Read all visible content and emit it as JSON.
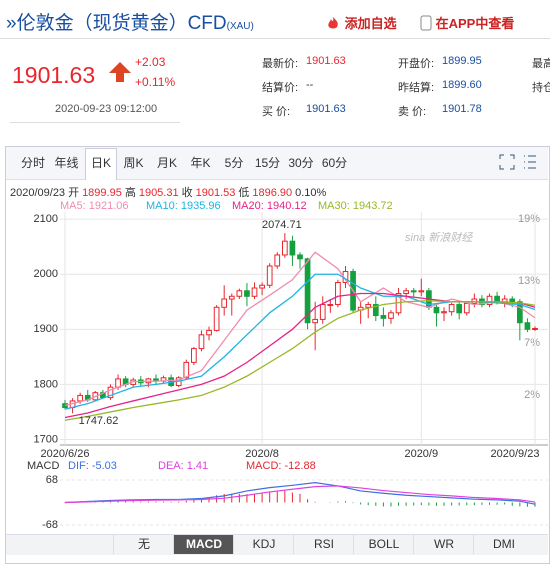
{
  "header": {
    "title": "»伦敦金（现货黄金）CFD",
    "code": "(XAU)",
    "add_watchlist": "添加自选",
    "open_app": "在APP中查看"
  },
  "quote": {
    "price": "1901.63",
    "change": "+2.03",
    "change_pct": "+0.11%",
    "time": "2020-09-23 09:12:00"
  },
  "fields": [
    [
      {
        "label": "最新价:",
        "value": "1901.63"
      },
      {
        "label": "开盘价:",
        "value": "1899.95"
      },
      {
        "label": "最高"
      }
    ],
    [
      {
        "label": "结算价:",
        "value": "--"
      },
      {
        "label": "昨结算:",
        "value": "1899.60"
      },
      {
        "label": "持仓"
      }
    ],
    [
      {
        "label": "买 价:",
        "value": "1901.63"
      },
      {
        "label": "卖 价:",
        "value": "1901.78"
      }
    ]
  ],
  "tabs": [
    "分时",
    "年线",
    "日K",
    "周K",
    "月K",
    "年K",
    "5分",
    "15分",
    "30分",
    "60分"
  ],
  "active_tab": "日K",
  "indicator_tabs": [
    "无",
    "MACD",
    "KDJ",
    "RSI",
    "BOLL",
    "WR",
    "DMI"
  ],
  "active_indicator": "MACD",
  "watermark": "sina 新浪财经",
  "chart_data": [
    {
      "type": "candlestick",
      "ohlc_line": [
        "2020/09/23",
        "开",
        "1899.95",
        "高",
        "1905.31",
        "收",
        "1901.53",
        "低",
        "1896.90",
        "0.10%"
      ],
      "up_color": "#e8262d",
      "down_color": "#14a03e",
      "categories": [
        "2020/6/26",
        null,
        null,
        null,
        null,
        null,
        null,
        null,
        null,
        null,
        null,
        null,
        null,
        null,
        null,
        null,
        null,
        null,
        null,
        null,
        null,
        null,
        null,
        null,
        null,
        null,
        "2020/8",
        null,
        null,
        null,
        null,
        null,
        null,
        null,
        null,
        null,
        null,
        null,
        null,
        null,
        null,
        null,
        null,
        null,
        null,
        null,
        null,
        "2020/9",
        null,
        null,
        null,
        null,
        null,
        null,
        null,
        null,
        null,
        null,
        null,
        null,
        null,
        null,
        "2020/9/23"
      ],
      "candles": [
        [
          1765,
          1772,
          1755,
          1758
        ],
        [
          1758,
          1775,
          1747.62,
          1770
        ],
        [
          1770,
          1785,
          1765,
          1780
        ],
        [
          1780,
          1790,
          1768,
          1772
        ],
        [
          1772,
          1788,
          1770,
          1785
        ],
        [
          1785,
          1790,
          1774,
          1776
        ],
        [
          1776,
          1800,
          1772,
          1795
        ],
        [
          1795,
          1818,
          1790,
          1810
        ],
        [
          1810,
          1815,
          1795,
          1800
        ],
        [
          1800,
          1812,
          1796,
          1808
        ],
        [
          1808,
          1815,
          1798,
          1803
        ],
        [
          1803,
          1812,
          1795,
          1810
        ],
        [
          1810,
          1818,
          1800,
          1806
        ],
        [
          1806,
          1816,
          1802,
          1812
        ],
        [
          1812,
          1818,
          1795,
          1798
        ],
        [
          1798,
          1815,
          1795,
          1812
        ],
        [
          1812,
          1845,
          1810,
          1840
        ],
        [
          1840,
          1868,
          1835,
          1865
        ],
        [
          1865,
          1898,
          1860,
          1890
        ],
        [
          1890,
          1905,
          1880,
          1898
        ],
        [
          1898,
          1944,
          1896,
          1940
        ],
        [
          1940,
          1980,
          1925,
          1955
        ],
        [
          1955,
          1965,
          1925,
          1960
        ],
        [
          1960,
          1974,
          1955,
          1970
        ],
        [
          1970,
          1984,
          1942,
          1960
        ],
        [
          1960,
          1985,
          1955,
          1975
        ],
        [
          1975,
          1985,
          1962,
          1980
        ],
        [
          1980,
          2020,
          1975,
          2015
        ],
        [
          2015,
          2040,
          2010,
          2035
        ],
        [
          2035,
          2074.71,
          2030,
          2060
        ],
        [
          2060,
          2070,
          2015,
          2035
        ],
        [
          2035,
          2040,
          2010,
          2028
        ],
        [
          2028,
          2030,
          1900,
          1912
        ],
        [
          1912,
          1950,
          1862,
          1918
        ],
        [
          1918,
          1960,
          1910,
          1945
        ],
        [
          1945,
          1955,
          1930,
          1945
        ],
        [
          1945,
          1990,
          1940,
          1985
        ],
        [
          1985,
          2015,
          1975,
          2005
        ],
        [
          2005,
          2010,
          1930,
          1935
        ],
        [
          1935,
          1950,
          1910,
          1940
        ],
        [
          1940,
          1950,
          1920,
          1945
        ],
        [
          1945,
          1960,
          1915,
          1925
        ],
        [
          1925,
          1940,
          1905,
          1920
        ],
        [
          1920,
          1935,
          1910,
          1930
        ],
        [
          1930,
          1975,
          1925,
          1965
        ],
        [
          1965,
          1975,
          1955,
          1970
        ],
        [
          1970,
          1975,
          1958,
          1968
        ],
        [
          1968,
          1992,
          1960,
          1970
        ],
        [
          1970,
          1975,
          1935,
          1940
        ],
        [
          1940,
          1948,
          1905,
          1930
        ],
        [
          1930,
          1940,
          1915,
          1932
        ],
        [
          1932,
          1948,
          1925,
          1945
        ],
        [
          1945,
          1950,
          1918,
          1930
        ],
        [
          1930,
          1950,
          1925,
          1947
        ],
        [
          1947,
          1965,
          1940,
          1955
        ],
        [
          1955,
          1962,
          1940,
          1945
        ],
        [
          1945,
          1965,
          1940,
          1960
        ],
        [
          1960,
          1968,
          1945,
          1950
        ],
        [
          1950,
          1962,
          1940,
          1955
        ],
        [
          1955,
          1960,
          1940,
          1950
        ],
        [
          1950,
          1955,
          1880,
          1912
        ],
        [
          1912,
          1920,
          1895,
          1900
        ],
        [
          1899.95,
          1905.31,
          1896.9,
          1901.53
        ]
      ],
      "max_label_index": 29,
      "min_label_index": 1,
      "ylim": [
        1690,
        2113
      ],
      "yticks": [
        1700,
        1800,
        1900,
        2000,
        2100
      ],
      "y2lim": [
        -2.83,
        19.68
      ],
      "y2ticks": [
        {
          "value": 2,
          "label": "2%"
        },
        {
          "value": 7,
          "label": "7%"
        },
        {
          "value": 13,
          "label": "13%"
        },
        {
          "value": 19,
          "label": "19%"
        }
      ],
      "grid": true,
      "series": [
        {
          "name": "MA5: 1921.06",
          "color": "#f08cb0",
          "x": [
            0,
            3,
            6,
            9,
            12,
            15,
            18,
            21,
            24,
            27,
            30,
            33,
            36,
            39,
            42,
            45,
            48,
            51,
            54,
            57,
            60,
            62
          ],
          "values": [
            1762,
            1772,
            1790,
            1805,
            1806,
            1808,
            1825,
            1880,
            1935,
            1962,
            1990,
            2040,
            2010,
            1950,
            1975,
            1950,
            1940,
            1955,
            1945,
            1950,
            1940,
            1921.06
          ]
        },
        {
          "name": "MA10: 1935.96",
          "color": "#1fb3e6",
          "x": [
            0,
            3,
            6,
            9,
            12,
            15,
            18,
            21,
            24,
            27,
            30,
            33,
            36,
            39,
            42,
            45,
            48,
            51,
            54,
            57,
            60,
            62
          ],
          "values": [
            1755,
            1765,
            1780,
            1795,
            1800,
            1806,
            1815,
            1850,
            1890,
            1930,
            1960,
            2000,
            2000,
            1975,
            1960,
            1960,
            1945,
            1950,
            1950,
            1948,
            1945,
            1935.96
          ]
        },
        {
          "name": "MA20: 1940.12",
          "color": "#e6228a",
          "x": [
            0,
            3,
            6,
            9,
            12,
            15,
            18,
            21,
            24,
            27,
            30,
            33,
            36,
            39,
            42,
            45,
            48,
            51,
            54,
            57,
            60,
            62
          ],
          "values": [
            1740,
            1748,
            1760,
            1770,
            1780,
            1790,
            1800,
            1815,
            1840,
            1870,
            1900,
            1940,
            1960,
            1965,
            1965,
            1960,
            1955,
            1950,
            1950,
            1950,
            1948,
            1940.12
          ]
        },
        {
          "name": "MA30: 1943.72",
          "color": "#98b923",
          "x": [
            0,
            3,
            6,
            9,
            12,
            15,
            18,
            21,
            24,
            27,
            30,
            33,
            36,
            39,
            42,
            45,
            48,
            51,
            54,
            57,
            60,
            62
          ],
          "values": [
            1735,
            1742,
            1750,
            1758,
            1765,
            1772,
            1780,
            1795,
            1815,
            1840,
            1865,
            1895,
            1920,
            1935,
            1945,
            1950,
            1952,
            1950,
            1950,
            1950,
            1948,
            1943.72
          ]
        }
      ]
    },
    {
      "type": "macd",
      "title": "MACD",
      "ylim": [
        -68,
        68
      ],
      "yticks": [
        68,
        -68
      ],
      "up_color": "#e8262d",
      "down_color": "#14a03e",
      "histogram_name": "MACD: -12.88",
      "histogram_color": "#e8262d",
      "histogram": [
        2,
        3,
        4,
        5,
        4,
        5,
        6,
        5,
        4,
        4,
        3,
        3,
        3,
        3,
        2,
        3,
        5,
        8,
        12,
        16,
        22,
        26,
        26,
        26,
        25,
        27,
        28,
        32,
        34,
        36,
        30,
        26,
        10,
        2,
        0,
        1,
        3,
        4,
        -2,
        -6,
        -8,
        -10,
        -12,
        -12,
        -10,
        -10,
        -9,
        -8,
        -9,
        -10,
        -10,
        -9,
        -9,
        -8,
        -8,
        -7,
        -7,
        -7,
        -6,
        -10,
        -12,
        -13,
        -12.88
      ],
      "series": [
        {
          "name": "DIF: -5.03",
          "color": "#3d6fe0",
          "x": [
            0,
            3,
            6,
            9,
            12,
            15,
            18,
            21,
            24,
            27,
            30,
            33,
            36,
            39,
            42,
            45,
            48,
            51,
            54,
            57,
            60,
            62
          ],
          "values": [
            0,
            3,
            6,
            8,
            9,
            9,
            12,
            20,
            35,
            45,
            52,
            60,
            50,
            35,
            28,
            22,
            18,
            14,
            10,
            8,
            4,
            -5.03
          ]
        },
        {
          "name": "DEA: 1.41",
          "color": "#e040e0",
          "x": [
            0,
            3,
            6,
            9,
            12,
            15,
            18,
            21,
            24,
            27,
            30,
            33,
            36,
            39,
            42,
            45,
            48,
            51,
            54,
            57,
            60,
            62
          ],
          "values": [
            0,
            2,
            4,
            6,
            7,
            8,
            9,
            13,
            22,
            32,
            40,
            48,
            50,
            44,
            36,
            30,
            24,
            20,
            15,
            12,
            8,
            1.41
          ]
        }
      ]
    }
  ]
}
